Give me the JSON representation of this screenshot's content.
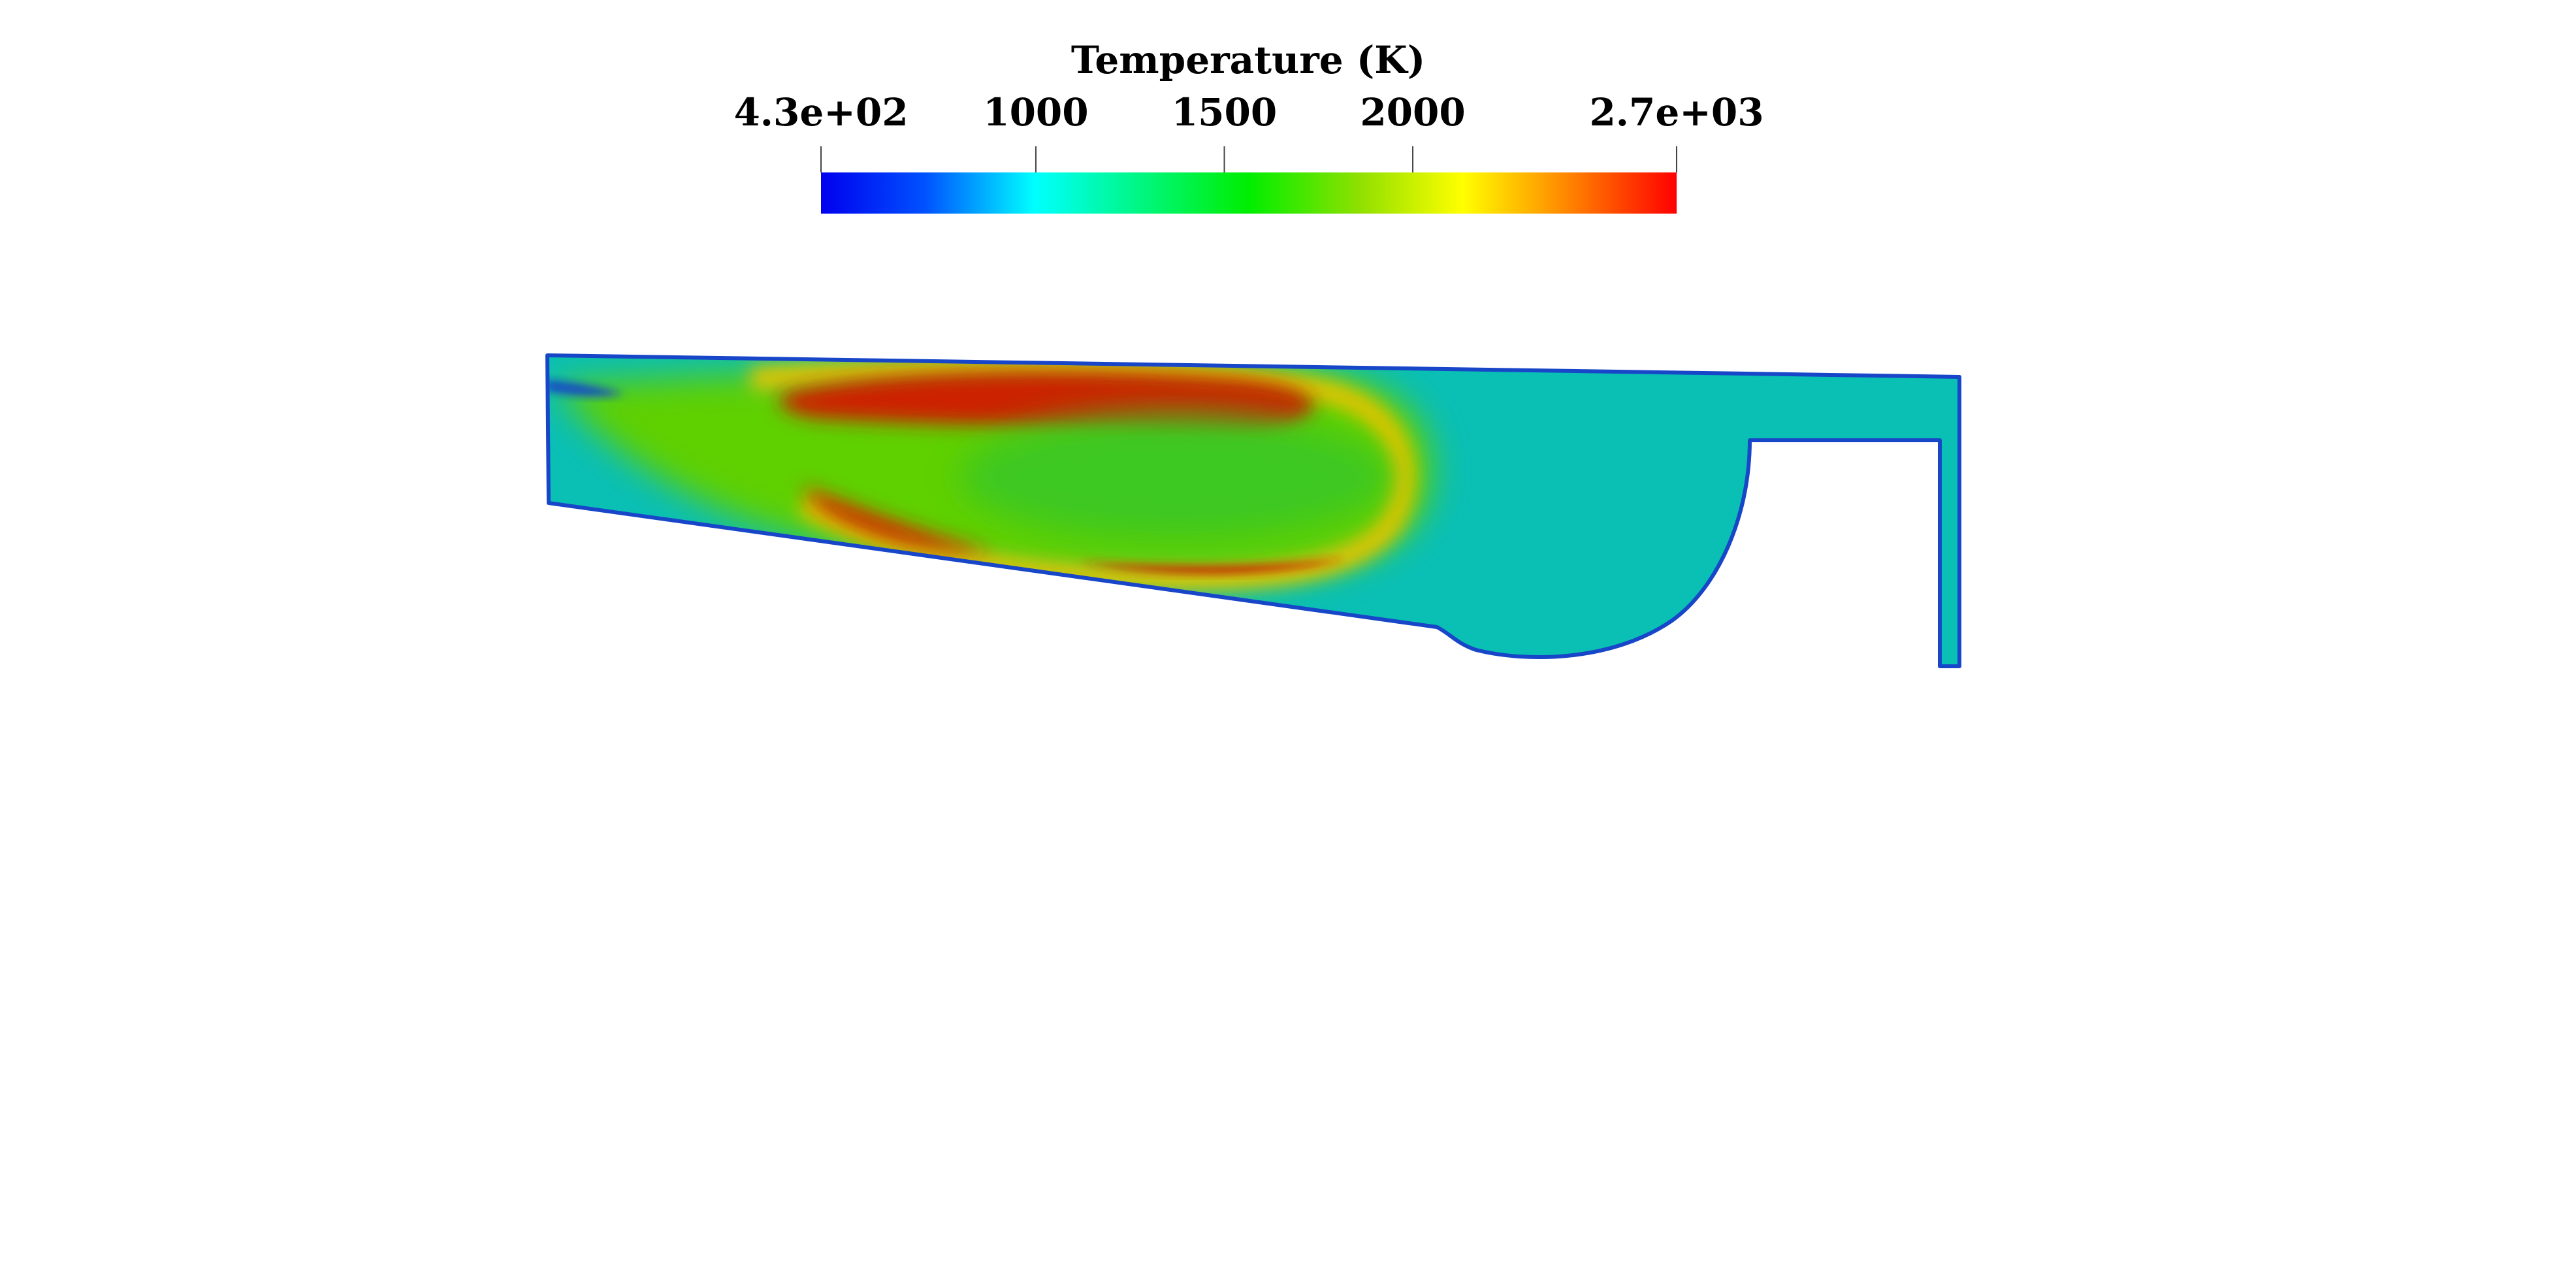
{
  "colorbar": {
    "title": "Temperature (K)",
    "range": [
      430,
      2700
    ],
    "ticks": [
      {
        "value": 430,
        "label": "4.3e+02"
      },
      {
        "value": 1000,
        "label": "1000"
      },
      {
        "value": 1500,
        "label": "1500"
      },
      {
        "value": 2000,
        "label": "2000"
      },
      {
        "value": 2700,
        "label": "2.7e+03"
      }
    ],
    "colormap": {
      "name": "rainbow-jet",
      "stops": [
        {
          "t": 0.0,
          "color": "#0000ee"
        },
        {
          "t": 0.12,
          "color": "#0050ff"
        },
        {
          "t": 0.25,
          "color": "#00ffff"
        },
        {
          "t": 0.5,
          "color": "#00ee00"
        },
        {
          "t": 0.63,
          "color": "#90e000"
        },
        {
          "t": 0.75,
          "color": "#ffff00"
        },
        {
          "t": 0.87,
          "color": "#ff8800"
        },
        {
          "t": 1.0,
          "color": "#ff0000"
        }
      ]
    }
  },
  "field": {
    "colors": {
      "ambient": "#0abfb4",
      "wall": "#1846c8",
      "warm": "#5fd000",
      "mid": "#a8d000",
      "hot_edge": "#e8c400",
      "hot": "#cc2200",
      "core": "#3cc820"
    }
  }
}
